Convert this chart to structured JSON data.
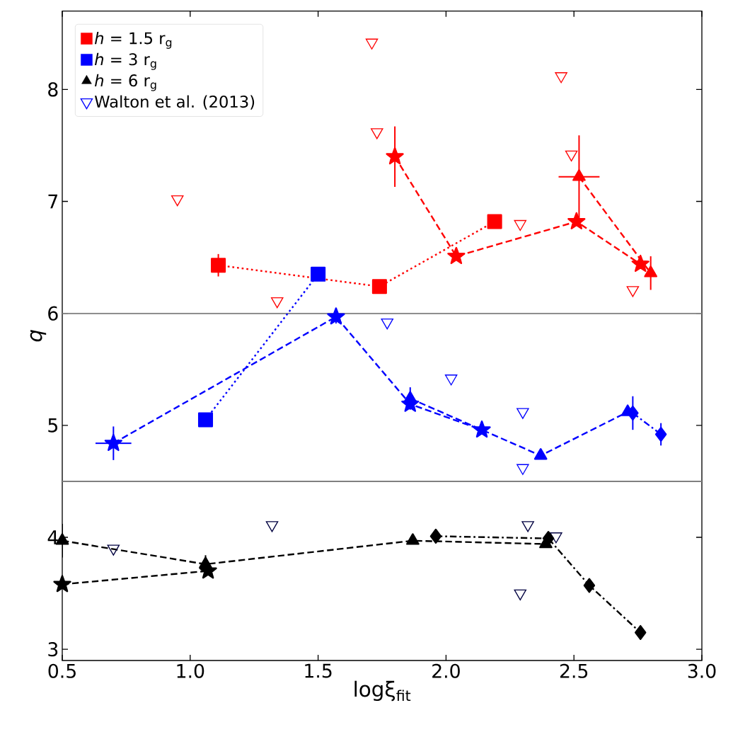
{
  "chart_data": {
    "type": "line",
    "xlabel": "logξ$_{fit}$",
    "ylabel": "q",
    "xlim": [
      0.5,
      3.0
    ],
    "ylim": [
      2.9,
      8.7
    ],
    "xticks": [
      {
        "value": 0.5,
        "label": "0.5"
      },
      {
        "value": 1.0,
        "label": "1.0"
      },
      {
        "value": 1.5,
        "label": "1.5"
      },
      {
        "value": 2.0,
        "label": "2.0"
      },
      {
        "value": 2.5,
        "label": "2.5"
      },
      {
        "value": 3.0,
        "label": "3.0"
      }
    ],
    "yticks": [
      3,
      4,
      5,
      6,
      7,
      8
    ],
    "legend": "top left",
    "ref_lines": [
      {
        "axis": "y",
        "value": 6,
        "color": "#808080"
      },
      {
        "axis": "y",
        "value": 4.5,
        "color": "#808080"
      }
    ],
    "series": [
      {
        "type": "scatter",
        "color": "#ff0000",
        "marker": "triangle_down",
        "x": [
          0.95,
          1.34,
          1.71,
          1.73,
          2.29,
          2.45,
          2.49,
          2.73
        ],
        "values": [
          7.02,
          6.11,
          8.42,
          7.62,
          6.8,
          8.12,
          7.42,
          6.21
        ]
      },
      {
        "type": "scatter",
        "name": "Walton et al. (2013)",
        "color": "#0000ff",
        "marker": "triangle_down",
        "x": [
          1.77,
          2.02,
          2.3,
          2.3
        ],
        "values": [
          5.92,
          5.42,
          5.12,
          4.62
        ]
      },
      {
        "type": "scatter",
        "color": "#000040",
        "marker": "triangle_down",
        "x": [
          0.7,
          1.32,
          2.29,
          2.32,
          2.43
        ],
        "values": [
          3.9,
          4.11,
          3.5,
          4.11,
          4.01
        ]
      },
      {
        "name": "*h* = 1.5 r$_{g}$",
        "color": "#ff0000",
        "marker": "square",
        "line_style": "dotted",
        "x": [
          1.11,
          1.74,
          2.19
        ],
        "values": [
          6.43,
          6.24,
          6.82
        ],
        "errors": [
          0.1,
          null,
          null
        ]
      },
      {
        "color": "#ff0000",
        "marker": "star",
        "line_style": "dashed",
        "x": [
          1.8,
          2.04,
          2.51,
          2.76
        ],
        "values": [
          7.4,
          6.51,
          6.82,
          6.44
        ],
        "errors": [
          0.27,
          null,
          null,
          null
        ]
      },
      {
        "color": "#ff0000",
        "marker": "triangle",
        "line_style": "dashed",
        "x": [
          2.52,
          2.8
        ],
        "values": [
          7.22,
          6.36
        ],
        "errors": [
          0.37,
          0.15
        ],
        "xerrors": [
          0.08,
          null
        ]
      },
      {
        "name": "*h* = 3 r$_{g}$",
        "color": "#0000ff",
        "marker": "square",
        "line_style": "dotted",
        "x": [
          1.06,
          1.5
        ],
        "values": [
          5.05,
          6.35
        ]
      },
      {
        "color": "#0000ff",
        "marker": "star",
        "line_style": "dashed",
        "x": [
          0.7,
          1.57,
          1.86,
          2.14
        ],
        "values": [
          4.84,
          5.97,
          5.19,
          4.96
        ],
        "errors": [
          0.15,
          0.06,
          null,
          null
        ],
        "xerrors": [
          0.07,
          null,
          null,
          null
        ]
      },
      {
        "color": "#0000ff",
        "marker": "triangle",
        "line_style": "dashed",
        "x": [
          1.86,
          2.37,
          2.71
        ],
        "values": [
          5.24,
          4.73,
          5.12
        ],
        "errors": [
          0.1,
          null,
          null
        ]
      },
      {
        "color": "#0000ff",
        "marker": "diamond",
        "line_style": "dashdot",
        "x": [
          2.73,
          2.84
        ],
        "values": [
          5.11,
          4.92
        ],
        "errors": [
          0.15,
          0.1
        ]
      },
      {
        "name": "*h* = 6 r$_{g}$",
        "color": "#000000",
        "marker": "triangle",
        "line_style": "dashed",
        "x": [
          0.5,
          1.06,
          1.87,
          2.39
        ],
        "values": [
          3.97,
          3.76,
          3.97,
          3.94
        ],
        "errors": [
          0.15,
          0.08,
          null,
          null
        ]
      },
      {
        "color": "#000000",
        "marker": "star",
        "line_style": "dashed",
        "x": [
          0.5,
          1.07
        ],
        "values": [
          3.58,
          3.7
        ]
      },
      {
        "color": "#000000",
        "marker": "diamond",
        "line_style": "dashdot",
        "x": [
          1.96,
          2.4,
          2.56,
          2.76
        ],
        "values": [
          4.01,
          3.99,
          3.57,
          3.15
        ]
      }
    ]
  }
}
